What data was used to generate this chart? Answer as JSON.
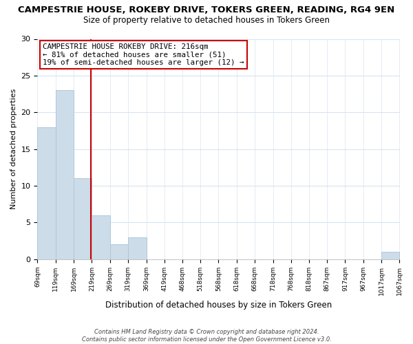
{
  "title": "CAMPESTRIE HOUSE, ROKEBY DRIVE, TOKERS GREEN, READING, RG4 9EN",
  "subtitle": "Size of property relative to detached houses in Tokers Green",
  "xlabel": "Distribution of detached houses by size in Tokers Green",
  "ylabel": "Number of detached properties",
  "bar_color": "#ccdce8",
  "bar_edge_color": "#b0c8dc",
  "bin_edges": [
    69,
    119,
    169,
    219,
    269,
    319,
    369,
    419,
    468,
    518,
    568,
    618,
    668,
    718,
    768,
    818,
    867,
    917,
    967,
    1017,
    1067
  ],
  "counts": [
    18,
    23,
    11,
    6,
    2,
    3,
    0,
    0,
    0,
    0,
    0,
    0,
    0,
    0,
    0,
    0,
    0,
    0,
    0,
    1
  ],
  "tick_labels": [
    "69sqm",
    "119sqm",
    "169sqm",
    "219sqm",
    "269sqm",
    "319sqm",
    "369sqm",
    "419sqm",
    "468sqm",
    "518sqm",
    "568sqm",
    "618sqm",
    "668sqm",
    "718sqm",
    "768sqm",
    "818sqm",
    "867sqm",
    "917sqm",
    "967sqm",
    "1017sqm",
    "1067sqm"
  ],
  "vline_x": 216,
  "vline_color": "#cc0000",
  "ylim": [
    0,
    30
  ],
  "yticks": [
    0,
    5,
    10,
    15,
    20,
    25,
    30
  ],
  "annotation_text": "CAMPESTRIE HOUSE ROKEBY DRIVE: 216sqm\n← 81% of detached houses are smaller (51)\n19% of semi-detached houses are larger (12) →",
  "footer_text": "Contains HM Land Registry data © Crown copyright and database right 2024.\nContains public sector information licensed under the Open Government Licence v3.0.",
  "background_color": "#ffffff",
  "plot_background": "#ffffff",
  "grid_color": "#d8e4f0"
}
